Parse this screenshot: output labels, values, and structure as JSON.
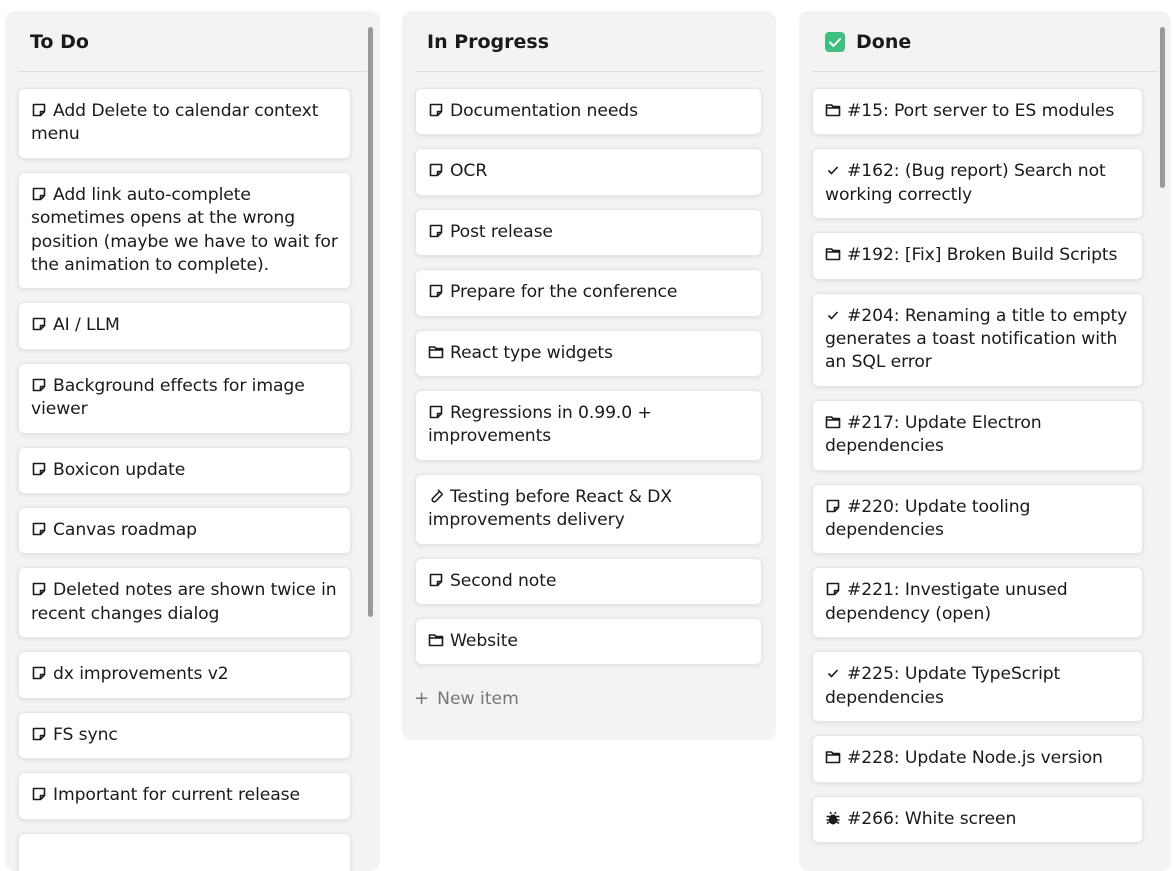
{
  "columns": [
    {
      "id": "todo",
      "title": "To Do",
      "title_icon": "",
      "items": [
        {
          "icon": "note",
          "text": "Add Delete to calendar context menu"
        },
        {
          "icon": "note",
          "text": "Add link auto-complete sometimes opens at the wrong position (maybe we have to wait for the animation to complete)."
        },
        {
          "icon": "note",
          "text": "AI / LLM"
        },
        {
          "icon": "note",
          "text": "Background effects for image viewer"
        },
        {
          "icon": "note",
          "text": "Boxicon update"
        },
        {
          "icon": "note",
          "text": "Canvas roadmap"
        },
        {
          "icon": "note",
          "text": "Deleted notes are shown twice in recent changes dialog"
        },
        {
          "icon": "note",
          "text": "dx improvements v2"
        },
        {
          "icon": "note",
          "text": "FS sync"
        },
        {
          "icon": "note",
          "text": "Important for current release"
        },
        {
          "icon": "note",
          "text": ""
        }
      ]
    },
    {
      "id": "prog",
      "title": "In Progress",
      "title_icon": "",
      "items": [
        {
          "icon": "note",
          "text": "Documentation needs"
        },
        {
          "icon": "note",
          "text": "OCR"
        },
        {
          "icon": "note",
          "text": "Post release"
        },
        {
          "icon": "note",
          "text": "Prepare for the conference"
        },
        {
          "icon": "folder",
          "text": "React type widgets"
        },
        {
          "icon": "note",
          "text": "Regressions in 0.99.0 + improvements"
        },
        {
          "icon": "test-tube",
          "text": "Testing before React & DX improvements delivery"
        },
        {
          "icon": "note",
          "text": "Second note"
        },
        {
          "icon": "folder",
          "text": "Website"
        }
      ],
      "new_item_label": "New item"
    },
    {
      "id": "done",
      "title": "Done",
      "title_icon": "green-check-box",
      "items": [
        {
          "icon": "folder",
          "text": "#15: Port server to ES modules"
        },
        {
          "icon": "check",
          "text": "#162: (Bug report) Search not working correctly"
        },
        {
          "icon": "folder",
          "text": "#192: [Fix] Broken Build Scripts"
        },
        {
          "icon": "check",
          "text": "#204: Renaming a title to empty generates a toast notification with an SQL error"
        },
        {
          "icon": "folder",
          "text": "#217: Update Electron dependencies"
        },
        {
          "icon": "note",
          "text": "#220: Update tooling dependencies"
        },
        {
          "icon": "note",
          "text": "#221: Investigate unused dependency (open)"
        },
        {
          "icon": "check",
          "text": "#225: Update TypeScript dependencies"
        },
        {
          "icon": "folder",
          "text": "#228: Update Node.js version"
        },
        {
          "icon": "bug",
          "text": "#266: White screen"
        }
      ]
    }
  ],
  "colors": {
    "column_bg": "#f3f3f4",
    "card_bg": "#ffffff",
    "done_check": "#3fbf7f"
  }
}
